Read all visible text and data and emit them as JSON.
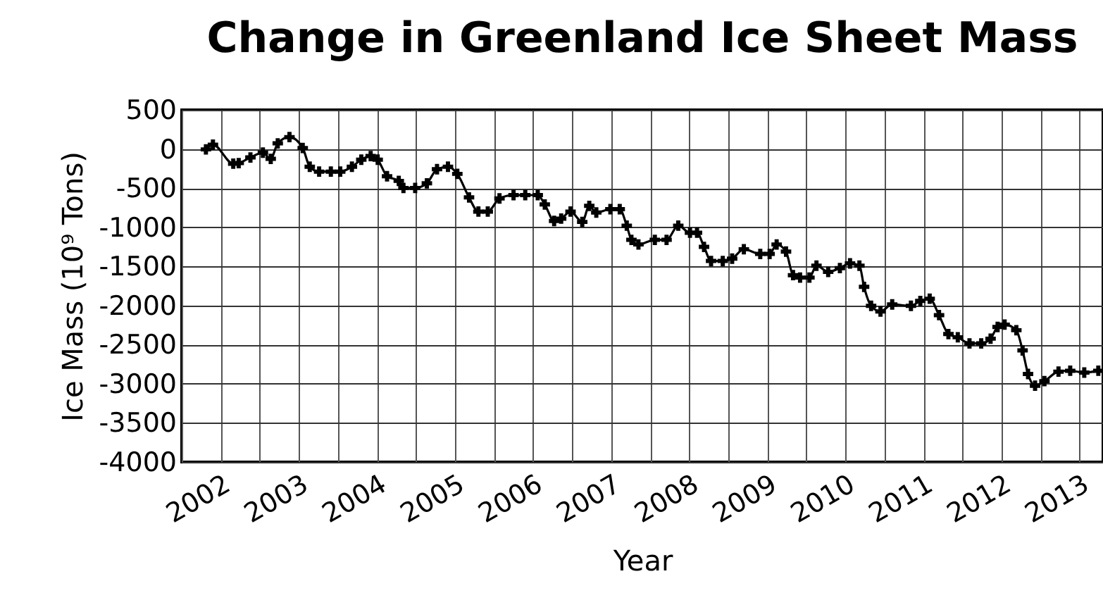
{
  "chart_data": {
    "type": "line",
    "title": "Change in Greenland Ice Sheet Mass",
    "xlabel": "Year",
    "ylabel": "Ice Mass (10⁹ Tons)",
    "x": [
      2001.81,
      2001.9,
      2002.16,
      2002.23,
      2002.38,
      2002.54,
      2002.64,
      2002.73,
      2002.88,
      2003.05,
      2003.14,
      2003.26,
      2003.41,
      2003.53,
      2003.68,
      2003.8,
      2003.92,
      2004.01,
      2004.13,
      2004.28,
      2004.34,
      2004.49,
      2004.64,
      2004.77,
      2004.91,
      2005.03,
      2005.18,
      2005.3,
      2005.42,
      2005.57,
      2005.75,
      2005.9,
      2006.06,
      2006.15,
      2006.27,
      2006.36,
      2006.48,
      2006.63,
      2006.72,
      2006.81,
      2006.99,
      2007.11,
      2007.2,
      2007.26,
      2007.35,
      2007.56,
      2007.71,
      2007.86,
      2008.01,
      2008.1,
      2008.19,
      2008.28,
      2008.43,
      2008.55,
      2008.7,
      2008.91,
      2009.03,
      2009.12,
      2009.24,
      2009.33,
      2009.42,
      2009.54,
      2009.63,
      2009.78,
      2009.93,
      2010.06,
      2010.18,
      2010.24,
      2010.33,
      2010.45,
      2010.6,
      2010.84,
      2010.96,
      2011.08,
      2011.2,
      2011.32,
      2011.44,
      2011.59,
      2011.74,
      2011.86,
      2011.95,
      2012.04,
      2012.19,
      2012.27,
      2012.34,
      2012.43,
      2012.55,
      2012.73,
      2012.88,
      2013.06,
      2013.24
    ],
    "series": [
      {
        "color": "#000000",
        "values": [
          -5,
          55,
          -188,
          -180,
          -108,
          -47,
          -126,
          72,
          152,
          13,
          -227,
          -289,
          -289,
          -289,
          -227,
          -137,
          -90,
          -137,
          -348,
          -408,
          -498,
          -498,
          -439,
          -258,
          -227,
          -318,
          -619,
          -800,
          -800,
          -632,
          -589,
          -589,
          -589,
          -709,
          -920,
          -890,
          -800,
          -932,
          -727,
          -812,
          -769,
          -769,
          -980,
          -1161,
          -1220,
          -1161,
          -1161,
          -980,
          -1070,
          -1070,
          -1251,
          -1431,
          -1431,
          -1401,
          -1281,
          -1341,
          -1341,
          -1220,
          -1311,
          -1612,
          -1643,
          -1643,
          -1491,
          -1570,
          -1522,
          -1462,
          -1491,
          -1762,
          -2004,
          -2076,
          -1986,
          -2004,
          -1942,
          -1913,
          -2123,
          -2365,
          -2406,
          -2484,
          -2484,
          -2424,
          -2274,
          -2244,
          -2316,
          -2574,
          -2875,
          -3025,
          -2966,
          -2845,
          -2834,
          -2857,
          -2834
        ]
      }
    ],
    "xlim": [
      2001.5,
      2013.3
    ],
    "xticks": [
      {
        "value": 2001.5,
        "label": null
      },
      {
        "value": 2002,
        "label": "2002"
      },
      {
        "value": 2002.5,
        "label": null
      },
      {
        "value": 2003,
        "label": "2003"
      },
      {
        "value": 2003.5,
        "label": null
      },
      {
        "value": 2004,
        "label": "2004"
      },
      {
        "value": 2004.5,
        "label": null
      },
      {
        "value": 2005,
        "label": "2005"
      },
      {
        "value": 2005.5,
        "label": null
      },
      {
        "value": 2006,
        "label": "2006"
      },
      {
        "value": 2006.5,
        "label": null
      },
      {
        "value": 2007,
        "label": "2007"
      },
      {
        "value": 2007.5,
        "label": null
      },
      {
        "value": 2008,
        "label": "2008"
      },
      {
        "value": 2008.5,
        "label": null
      },
      {
        "value": 2009,
        "label": "2009"
      },
      {
        "value": 2009.5,
        "label": null
      },
      {
        "value": 2010,
        "label": "2010"
      },
      {
        "value": 2010.5,
        "label": null
      },
      {
        "value": 2011,
        "label": "2011"
      },
      {
        "value": 2011.5,
        "label": null
      },
      {
        "value": 2012,
        "label": "2012"
      },
      {
        "value": 2012.5,
        "label": null
      },
      {
        "value": 2013,
        "label": "2013"
      }
    ],
    "ylim": [
      -4000,
      500
    ],
    "yticks": [
      -4000,
      -3500,
      -3000,
      -2500,
      -2000,
      -1500,
      -1000,
      -500,
      0,
      500
    ],
    "grid": true,
    "marker": "cross",
    "line_style": "solid"
  }
}
